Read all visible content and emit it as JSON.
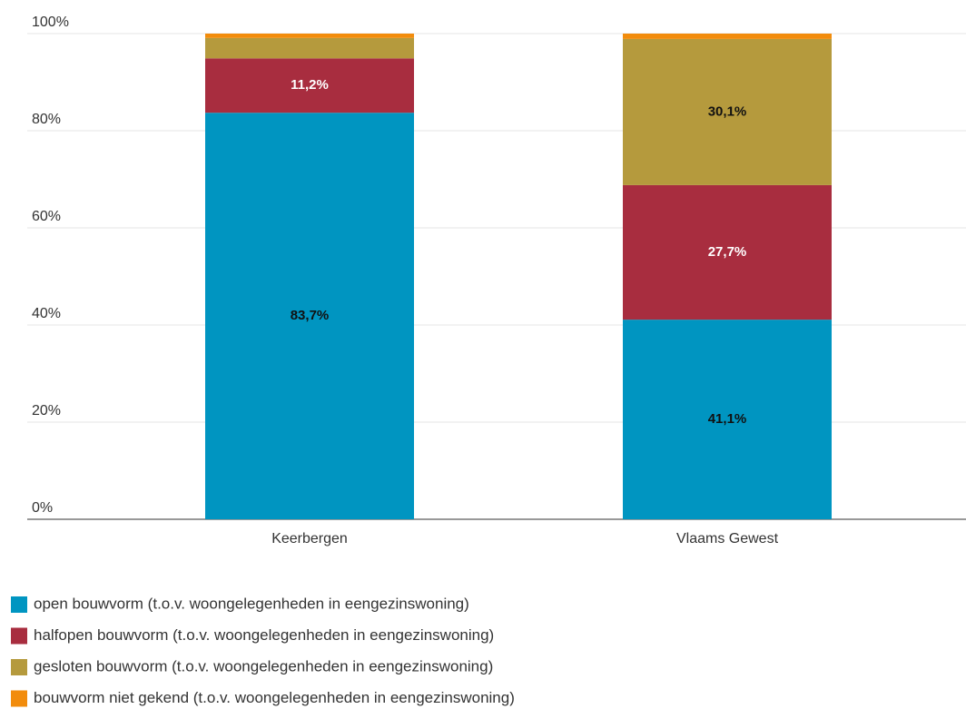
{
  "chart_data": {
    "type": "stacked_bar",
    "categories": [
      "Keerbergen",
      "Vlaams Gewest"
    ],
    "series": [
      {
        "name": "open bouwvorm (t.o.v. woongelegenheden in eengezinswoning)",
        "color": "#0095c1",
        "label_color": "#111111",
        "values": [
          83.7,
          41.1
        ],
        "value_labels": [
          "83,7%",
          "41,1%"
        ]
      },
      {
        "name": "halfopen bouwvorm (t.o.v. woongelegenheden in eengezinswoning)",
        "color": "#a82d3f",
        "label_color": "#ffffff",
        "values": [
          11.2,
          27.7
        ],
        "value_labels": [
          "11,2%",
          "27,7%"
        ]
      },
      {
        "name": "gesloten bouwvorm (t.o.v. woongelegenheden in eengezinswoning)",
        "color": "#b59a3d",
        "label_color": "#111111",
        "values": [
          4.2,
          30.1
        ],
        "value_labels": [
          null,
          "30,1%"
        ]
      },
      {
        "name": "bouwvorm niet gekend (t.o.v. woongelegenheden in eengezinswoning)",
        "color": "#f28c0c",
        "label_color": "#111111",
        "values": [
          0.9,
          1.1
        ],
        "value_labels": [
          null,
          null
        ]
      }
    ],
    "ylim": [
      0,
      100
    ],
    "yticks": [
      {
        "value": 0,
        "label": "0%"
      },
      {
        "value": 20,
        "label": "20%"
      },
      {
        "value": 40,
        "label": "40%"
      },
      {
        "value": 60,
        "label": "60%"
      },
      {
        "value": 80,
        "label": "80%"
      },
      {
        "value": 100,
        "label": "100%"
      }
    ],
    "grid": true
  }
}
